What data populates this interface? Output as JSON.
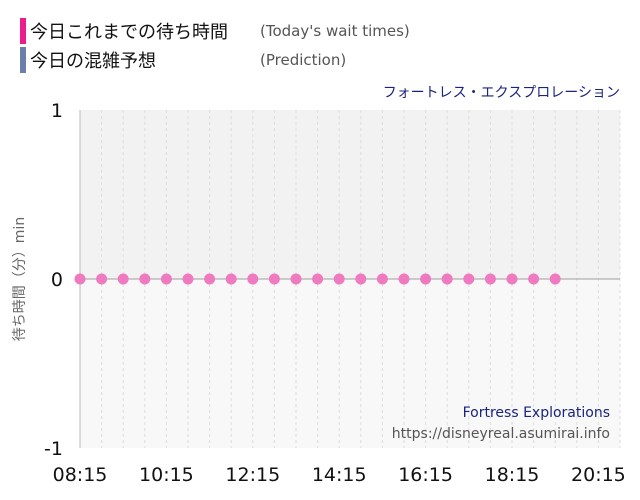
{
  "legend": {
    "actual_label": "今日これまでの待ち時間",
    "actual_note": "(Today's wait times)",
    "predict_label": "今日の混雑予想",
    "predict_note": "(Prediction)"
  },
  "ride_title": "フォートレス・エクスプロレーション",
  "watermark": {
    "name": "Fortress Explorations",
    "url": "https://disneyreal.asumirai.info"
  },
  "colors": {
    "actual": "#e91e8c",
    "actual_point": "#f07ac0",
    "predict": "#6b7fa8",
    "plot_bg_top": "#f2f2f2",
    "plot_bg_bottom": "#f8f8f8"
  },
  "chart_data": {
    "type": "scatter",
    "ylabel": "待ち時間（分）min",
    "xlabel": "",
    "ylim": [
      -1,
      1
    ],
    "yticks": [
      1,
      0,
      -1
    ],
    "xtick_labels": [
      "08:15",
      "10:15",
      "12:15",
      "14:15",
      "16:15",
      "18:15",
      "20:15"
    ],
    "x_range": [
      "08:15",
      "20:45"
    ],
    "grid": true,
    "series": [
      {
        "name": "今日これまでの待ち時間",
        "x": [
          "08:15",
          "08:45",
          "09:15",
          "09:45",
          "10:15",
          "10:45",
          "11:15",
          "11:45",
          "12:15",
          "12:45",
          "13:15",
          "13:45",
          "14:15",
          "14:45",
          "15:15",
          "15:45",
          "16:15",
          "16:45",
          "17:15",
          "17:45",
          "18:15",
          "18:45",
          "19:15"
        ],
        "values": [
          0,
          0,
          0,
          0,
          0,
          0,
          0,
          0,
          0,
          0,
          0,
          0,
          0,
          0,
          0,
          0,
          0,
          0,
          0,
          0,
          0,
          0,
          0
        ]
      }
    ]
  }
}
